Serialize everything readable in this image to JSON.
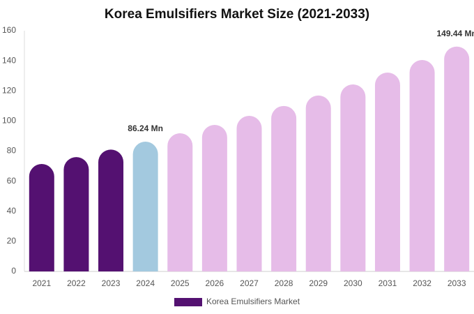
{
  "chart_data": {
    "type": "bar",
    "title": "Korea Emulsifiers Market Size (2021-2033)",
    "categories": [
      "2021",
      "2022",
      "2023",
      "2024",
      "2025",
      "2026",
      "2027",
      "2028",
      "2029",
      "2030",
      "2031",
      "2032",
      "2033"
    ],
    "series": [
      {
        "name": "Korea Emulsifiers Market",
        "color": "#541171",
        "colors": [
          "#541171",
          "#541171",
          "#541171",
          "#a3c9df",
          "#e6bce8",
          "#e6bce8",
          "#e6bce8",
          "#e6bce8",
          "#e6bce8",
          "#e6bce8",
          "#e6bce8",
          "#e6bce8",
          "#e6bce8"
        ],
        "values": [
          71.4,
          76,
          81,
          86.24,
          91.8,
          97.4,
          103.4,
          110,
          116.9,
          124.3,
          132.2,
          140.5,
          149.44
        ],
        "value_labels": [
          null,
          null,
          null,
          "86.24 Mn",
          null,
          null,
          null,
          null,
          null,
          null,
          null,
          null,
          "149.44 Mn"
        ]
      }
    ],
    "ylim": [
      0,
      160
    ],
    "yticks": [
      0,
      20,
      40,
      60,
      80,
      100,
      120,
      140,
      160
    ],
    "grid": false
  }
}
